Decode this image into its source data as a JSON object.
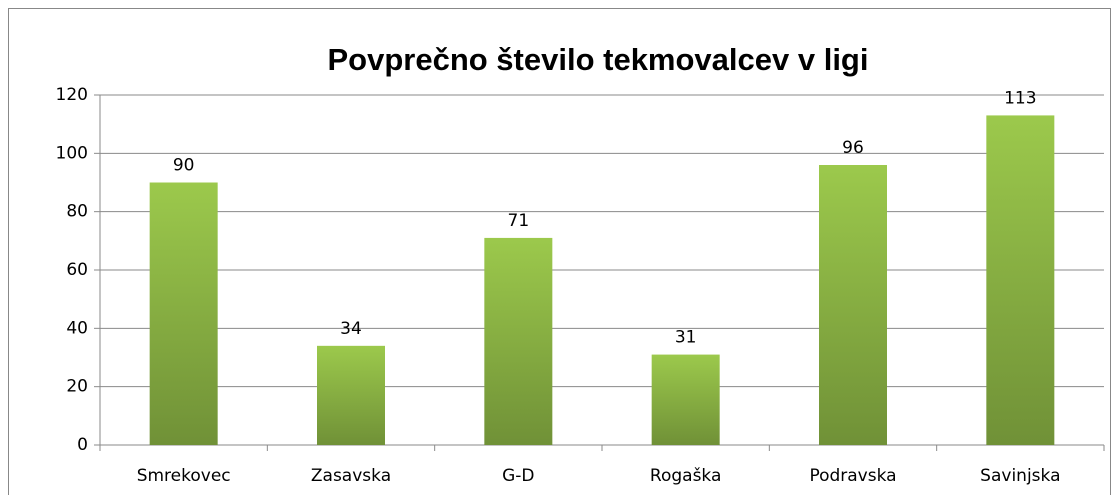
{
  "chart_data": {
    "type": "bar",
    "title": "Povprečno število tekmovalcev v ligi",
    "categories": [
      "Smrekovec",
      "Zasavska",
      "G-D",
      "Rogaška",
      "Podravska",
      "Savinjska"
    ],
    "values": [
      90,
      34,
      71,
      31,
      96,
      113
    ],
    "color": "#9cc94c",
    "ylim": [
      0,
      120
    ],
    "yticks": [
      0,
      20,
      40,
      60,
      80,
      100,
      120
    ],
    "grid": true
  }
}
